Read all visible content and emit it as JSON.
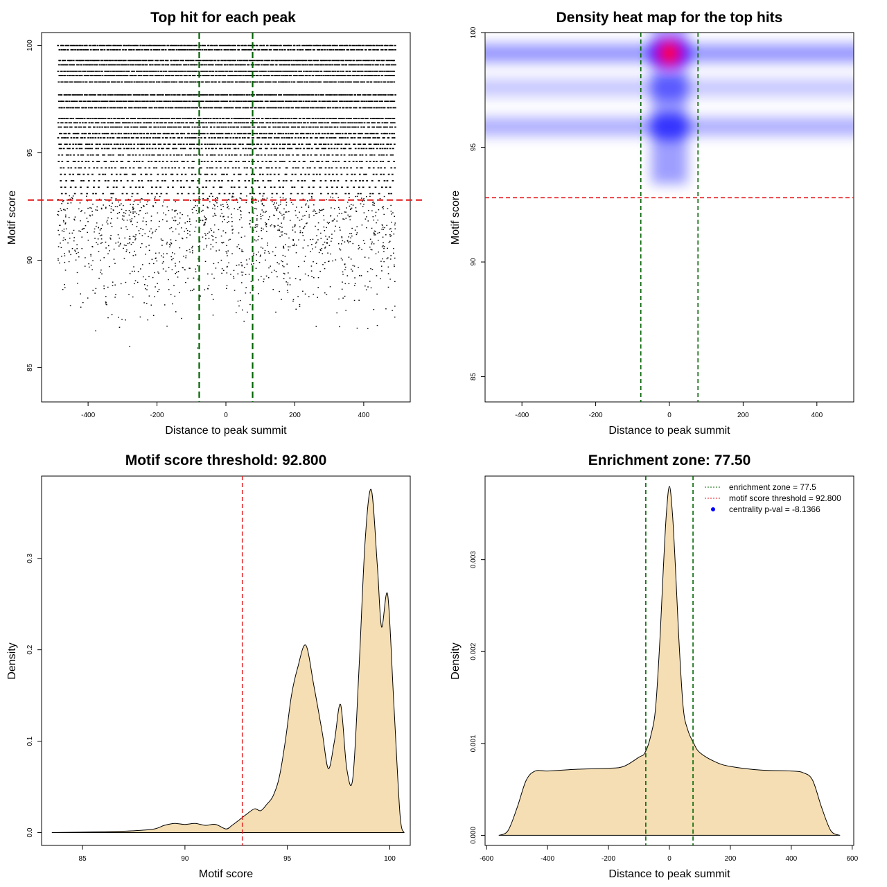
{
  "chart_data": [
    {
      "id": "scatter",
      "type": "scatter",
      "title": "Top hit for each peak",
      "xlabel": "Distance to peak summit",
      "ylabel": "Motif score",
      "xlim": [
        -535,
        535
      ],
      "ylim": [
        83.4,
        100.6
      ],
      "xticks": [
        "-400",
        "-200",
        "0",
        "200",
        "400"
      ],
      "yticks": [
        "85",
        "90",
        "95",
        "100"
      ],
      "x_range_of_points": [
        -490,
        490
      ],
      "vlines": [
        -77.5,
        77.5
      ],
      "vline_color": "#006400",
      "hline": 92.8,
      "hline_color": "#e41a1c",
      "score_level_density_profile": [
        {
          "score": 100.0,
          "density": 1.0
        },
        {
          "score": 99.8,
          "density": 0.85
        },
        {
          "score": 99.3,
          "density": 1.0
        },
        {
          "score": 99.1,
          "density": 0.95
        },
        {
          "score": 98.8,
          "density": 1.0
        },
        {
          "score": 98.6,
          "density": 1.0
        },
        {
          "score": 98.3,
          "density": 0.9
        },
        {
          "score": 97.7,
          "density": 1.0
        },
        {
          "score": 97.4,
          "density": 1.0
        },
        {
          "score": 97.1,
          "density": 0.9
        },
        {
          "score": 96.6,
          "density": 0.9
        },
        {
          "score": 96.4,
          "density": 0.8
        },
        {
          "score": 96.2,
          "density": 0.75
        },
        {
          "score": 95.9,
          "density": 0.75
        },
        {
          "score": 95.7,
          "density": 0.7
        },
        {
          "score": 95.4,
          "density": 0.65
        },
        {
          "score": 95.2,
          "density": 0.6
        },
        {
          "score": 94.9,
          "density": 0.55
        },
        {
          "score": 94.6,
          "density": 0.5
        },
        {
          "score": 94.3,
          "density": 0.45
        },
        {
          "score": 94.0,
          "density": 0.4
        },
        {
          "score": 93.7,
          "density": 0.35
        },
        {
          "score": 93.4,
          "density": 0.3
        },
        {
          "score": 93.1,
          "density": 0.28
        }
      ],
      "sparse_scatter_range": [
        83.5,
        93.0
      ]
    },
    {
      "id": "heatmap",
      "type": "heatmap",
      "title": "Density heat map for the top hits",
      "xlabel": "Distance to peak summit",
      "ylabel": "Motif score",
      "xlim": [
        -500,
        500
      ],
      "ylim": [
        83.9,
        100.0
      ],
      "xticks": [
        "-400",
        "-200",
        "0",
        "200",
        "400"
      ],
      "yticks": [
        "85",
        "90",
        "95",
        "100"
      ],
      "vlines": [
        -77.5,
        77.5
      ],
      "vline_color": "#006400",
      "hline": 92.8,
      "hline_color": "#e41a1c",
      "colors": [
        "#ffffff",
        "#0000ff",
        "#ff0000"
      ],
      "horizontal_bands": [
        {
          "score": 99.1,
          "intensity": 0.42
        },
        {
          "score": 97.6,
          "intensity": 0.22
        },
        {
          "score": 95.9,
          "intensity": 0.32
        }
      ],
      "central_peaks": [
        {
          "score": 99.1,
          "intensity": 1.0
        },
        {
          "score": 95.9,
          "intensity": 0.55
        },
        {
          "score": 97.6,
          "intensity": 0.3
        }
      ]
    },
    {
      "id": "score-density",
      "type": "area",
      "title": "Motif score threshold: 92.800",
      "xlabel": "Motif score",
      "ylabel": "Density",
      "xlim": [
        83,
        101
      ],
      "ylim": [
        -0.014,
        0.39
      ],
      "xticks": [
        "85",
        "90",
        "95",
        "100"
      ],
      "yticks": [
        "0.0",
        "0.1",
        "0.2",
        "0.3"
      ],
      "fill_color": "#f5deb3",
      "vline": 92.8,
      "vline_color": "#e41a1c",
      "x": [
        83.5,
        86,
        87.5,
        88.5,
        89,
        89.5,
        90,
        90.5,
        91,
        91.5,
        92,
        92.3,
        92.6,
        93,
        93.4,
        93.7,
        94,
        94.3,
        94.6,
        94.9,
        95.2,
        95.5,
        95.9,
        96.3,
        96.7,
        97,
        97.3,
        97.6,
        97.9,
        98.2,
        98.5,
        98.8,
        99.1,
        99.4,
        99.6,
        99.9,
        100.2,
        100.5,
        100.7
      ],
      "y": [
        0.0,
        0.001,
        0.002,
        0.004,
        0.008,
        0.01,
        0.009,
        0.01,
        0.008,
        0.009,
        0.004,
        0.008,
        0.013,
        0.02,
        0.026,
        0.024,
        0.031,
        0.04,
        0.06,
        0.1,
        0.15,
        0.18,
        0.205,
        0.16,
        0.11,
        0.07,
        0.1,
        0.14,
        0.07,
        0.06,
        0.18,
        0.32,
        0.375,
        0.29,
        0.225,
        0.26,
        0.14,
        0.02,
        0.0
      ]
    },
    {
      "id": "distance-density",
      "type": "area",
      "title": "Enrichment zone: 77.50",
      "xlabel": "Distance to peak summit",
      "ylabel": "Density",
      "xlim": [
        -605,
        605
      ],
      "ylim": [
        -0.00011,
        0.00391
      ],
      "xticks": [
        "-600",
        "-400",
        "-200",
        "0",
        "200",
        "400",
        "600"
      ],
      "yticks": [
        "0.000",
        "0.001",
        "0.002",
        "0.003"
      ],
      "fill_color": "#f5deb3",
      "vlines": [
        -77.5,
        77.5
      ],
      "vline_color": "#006400",
      "x": [
        -560,
        -530,
        -500,
        -470,
        -440,
        -400,
        -300,
        -200,
        -150,
        -100,
        -80,
        -60,
        -45,
        -30,
        -20,
        -10,
        0,
        10,
        20,
        30,
        45,
        60,
        80,
        100,
        150,
        200,
        300,
        400,
        440,
        470,
        500,
        530,
        560
      ],
      "y": [
        0.0,
        5e-05,
        0.0003,
        0.0006,
        0.0007,
        0.0007,
        0.00072,
        0.00073,
        0.00075,
        0.00085,
        0.0009,
        0.0011,
        0.0014,
        0.0022,
        0.0029,
        0.0035,
        0.0038,
        0.0035,
        0.0029,
        0.0022,
        0.0014,
        0.00115,
        0.001,
        0.0009,
        0.0008,
        0.00075,
        0.00071,
        0.0007,
        0.00068,
        0.0006,
        0.0003,
        5e-05,
        0.0
      ],
      "legend": [
        {
          "label": "enrichment zone = 77.5",
          "color": "#006400",
          "style": "dotted-line"
        },
        {
          "label": "motif score threshold = 92.800",
          "color": "#e41a1c",
          "style": "dotted-line"
        },
        {
          "label": "centrality p-val = -8.1366",
          "color": "#0000ff",
          "style": "point"
        }
      ],
      "legend_position": "top-right"
    }
  ]
}
